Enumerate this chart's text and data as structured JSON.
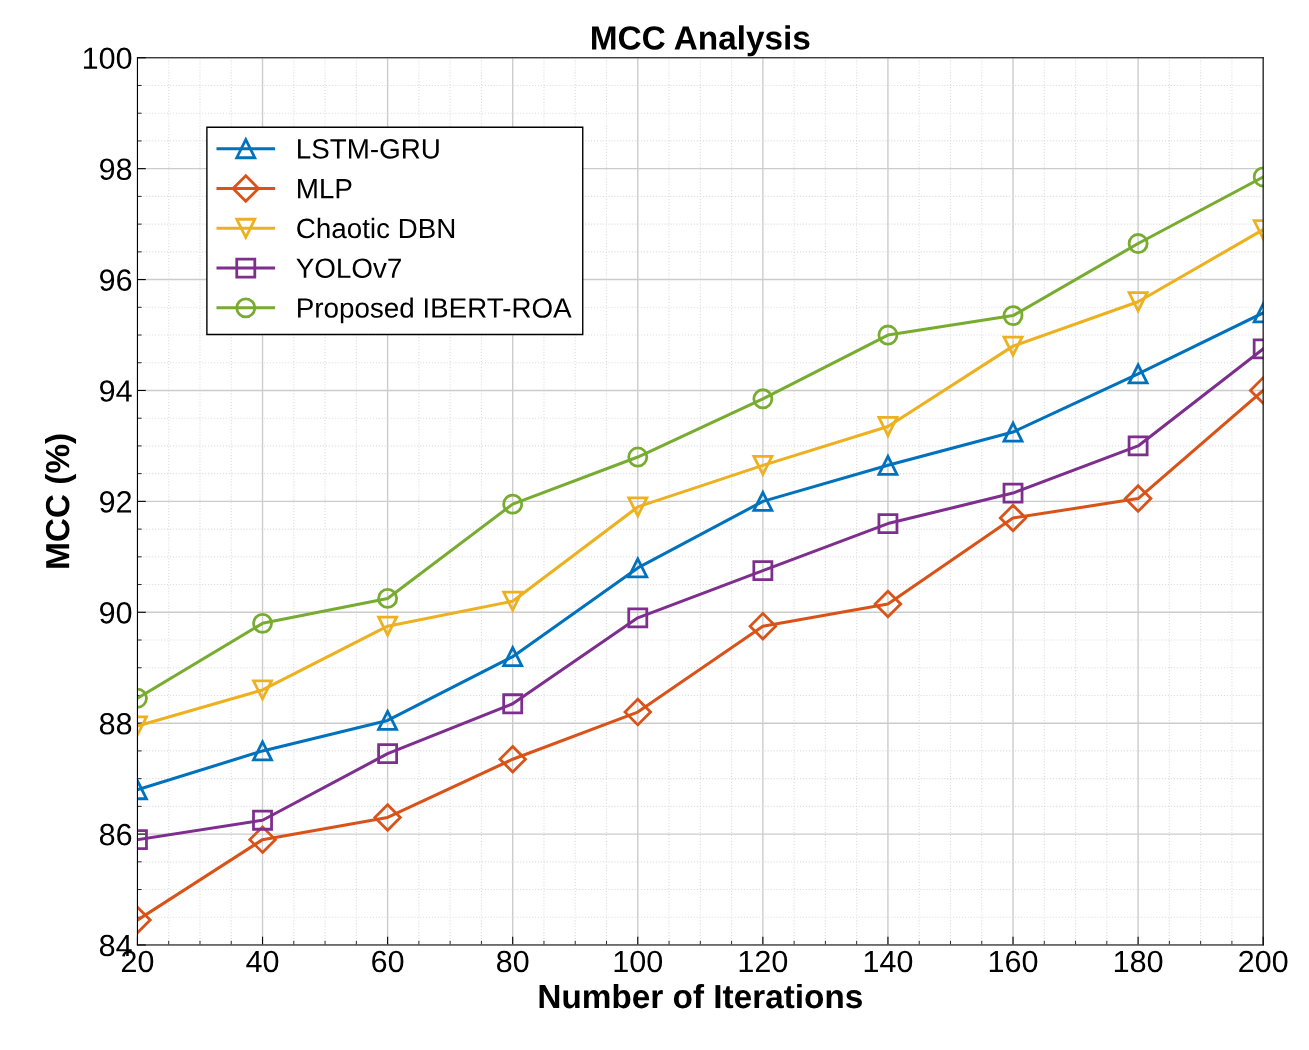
{
  "chart_data": {
    "type": "line",
    "title": "MCC Analysis",
    "xlabel": "Number of Iterations",
    "ylabel": "MCC (%)",
    "x": [
      20,
      40,
      60,
      80,
      100,
      120,
      140,
      160,
      180,
      200
    ],
    "series": [
      {
        "name": "LSTM-GRU",
        "color": "#0072bd",
        "marker": "triangle",
        "values": [
          86.8,
          87.5,
          88.05,
          89.2,
          90.8,
          92.0,
          92.65,
          93.25,
          94.3,
          95.4
        ]
      },
      {
        "name": "MLP",
        "color": "#d95319",
        "marker": "diamond",
        "values": [
          84.45,
          85.9,
          86.3,
          87.35,
          88.2,
          89.75,
          90.15,
          91.7,
          92.05,
          94.0
        ]
      },
      {
        "name": "Chaotic DBN",
        "color": "#edb120",
        "marker": "triangle_down",
        "values": [
          87.95,
          88.6,
          89.75,
          90.2,
          91.9,
          92.65,
          93.35,
          94.8,
          95.6,
          96.9
        ]
      },
      {
        "name": "YOLOv7",
        "color": "#7e2f8e",
        "marker": "square",
        "values": [
          85.9,
          86.25,
          87.45,
          88.35,
          89.9,
          90.75,
          91.6,
          92.15,
          93.0,
          94.75
        ]
      },
      {
        "name": "Proposed IBERT-ROA",
        "color": "#77ac30",
        "marker": "circle",
        "values": [
          88.45,
          89.8,
          90.25,
          91.95,
          92.8,
          93.85,
          95.0,
          95.35,
          96.65,
          97.85
        ]
      }
    ],
    "xlim": [
      20,
      200
    ],
    "xticks": [
      20,
      40,
      60,
      80,
      100,
      120,
      140,
      160,
      180,
      200
    ],
    "ylim": [
      84,
      100
    ],
    "yticks": [
      84,
      86,
      88,
      90,
      92,
      94,
      96,
      98,
      100
    ],
    "grid": true,
    "legend": "top left",
    "line_style": "solid"
  }
}
